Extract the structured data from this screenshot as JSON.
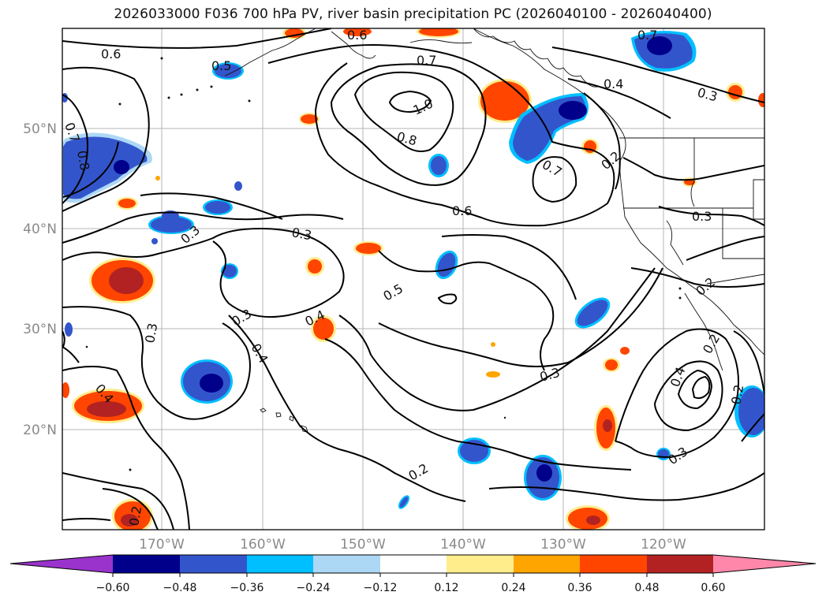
{
  "title": "2026033000 F036 700 hPa PV, river basin precipitation PC (2026040100 - 2026040400)",
  "map": {
    "lat_ticks": [
      "50°N",
      "40°N",
      "30°N",
      "20°N"
    ],
    "lon_ticks": [
      "170°W",
      "160°W",
      "150°W",
      "140°W",
      "130°W",
      "120°W"
    ],
    "contour_labels": [
      "0.6",
      "0.6",
      "0.5",
      "0.7",
      "0.7",
      "0.7",
      "1.0",
      "0.8",
      "0.8",
      "0.4",
      "0.3",
      "0.2",
      "0.7",
      "0.6",
      "0.3",
      "0.3",
      "0.3",
      "0.5",
      "0.3",
      "0.4",
      "0.3",
      "0.4",
      "0.4",
      "0.3",
      "0.2",
      "0.2",
      "0.2",
      "0.4",
      "0.3",
      "0.2",
      "0.2"
    ]
  },
  "colorbar": {
    "ticks": [
      "−0.60",
      "−0.48",
      "−0.36",
      "−0.24",
      "−0.12",
      "0.12",
      "0.24",
      "0.36",
      "0.48",
      "0.60"
    ],
    "colors": {
      "neg_extend": "#9933cc",
      "neg060": "#00008b",
      "neg048": "#3355cc",
      "neg036": "#00bfff",
      "neg024": "#add8f5",
      "neutral": "#ffffff",
      "pos012": "#ffec8b",
      "pos024": "#ffa500",
      "pos036": "#ff4500",
      "pos048": "#b22222",
      "pos_extend": "#ff88aa"
    }
  }
}
